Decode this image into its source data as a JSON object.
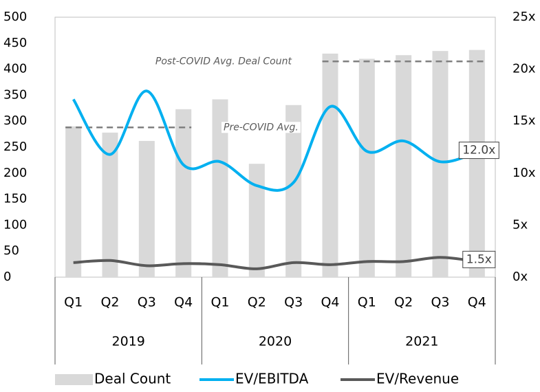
{
  "chart_data": {
    "type": "bar",
    "categories": [
      "Q1",
      "Q2",
      "Q3",
      "Q4",
      "Q1",
      "Q2",
      "Q3",
      "Q4",
      "Q1",
      "Q2",
      "Q3",
      "Q4"
    ],
    "groups": [
      "2019",
      "2020",
      "2021"
    ],
    "series": [
      {
        "name": "Deal Count",
        "type": "bar",
        "color": "#d9d9d9",
        "values": [
          290,
          278,
          262,
          323,
          342,
          218,
          331,
          430,
          420,
          427,
          435,
          437
        ]
      },
      {
        "name": "EV/EBITDA",
        "type": "line",
        "axis": "y2",
        "color": "#00b0f0",
        "values": [
          17.1,
          11.8,
          17.9,
          10.8,
          11.1,
          8.8,
          9.1,
          16.4,
          12.1,
          13.1,
          11.1,
          12.0
        ],
        "value_labels": [
          null,
          null,
          null,
          null,
          null,
          null,
          null,
          null,
          null,
          null,
          null,
          "12.0x"
        ]
      },
      {
        "name": "EV/Revenue",
        "type": "line",
        "axis": "y2",
        "color": "#595959",
        "values": [
          1.4,
          1.6,
          1.1,
          1.3,
          1.2,
          0.8,
          1.4,
          1.2,
          1.5,
          1.5,
          1.9,
          1.5
        ],
        "value_labels": [
          null,
          null,
          null,
          null,
          null,
          null,
          null,
          null,
          null,
          null,
          null,
          "1.5x"
        ]
      }
    ],
    "annotations": [
      {
        "text": "Pre-COVID Avg.",
        "value": 288
      },
      {
        "text": "Post-COVID Avg. Deal Count",
        "value": 415
      }
    ],
    "ylim": [
      0,
      500
    ],
    "yticks": [
      0,
      50,
      100,
      150,
      200,
      250,
      300,
      350,
      400,
      450,
      500
    ],
    "y2lim": [
      0,
      25
    ],
    "y2ticks": [
      {
        "value": 0,
        "label": "0x"
      },
      {
        "value": 5,
        "label": "5x"
      },
      {
        "value": 10,
        "label": "10x"
      },
      {
        "value": 15,
        "label": "15x"
      },
      {
        "value": 20,
        "label": "20x"
      },
      {
        "value": 25,
        "label": "25x"
      }
    ],
    "legend": "bottom"
  }
}
